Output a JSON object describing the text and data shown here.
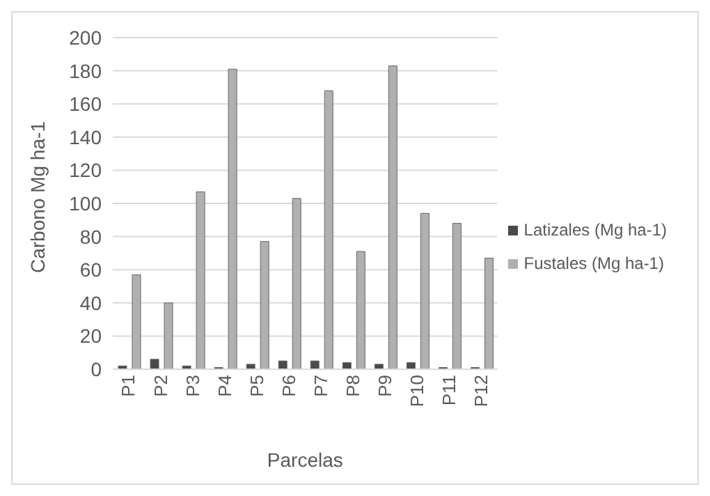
{
  "chart_data": {
    "type": "bar",
    "xlabel": "Parcelas",
    "ylabel": "Carbono Mg ha-1",
    "categories": [
      "P1",
      "P2",
      "P3",
      "P4",
      "P5",
      "P6",
      "P7",
      "P8",
      "P9",
      "P10",
      "P11",
      "P12"
    ],
    "series": [
      {
        "name": "Latizales (Mg ha-1)",
        "color": "#4a4a4a",
        "values": [
          2,
          6,
          2,
          1,
          3,
          5,
          5,
          4,
          3,
          4,
          1,
          1
        ]
      },
      {
        "name": "Fustales (Mg ha-1)",
        "color": "#b0b0b0",
        "values": [
          57,
          40,
          107,
          181,
          77,
          103,
          168,
          71,
          183,
          94,
          88,
          67
        ]
      }
    ],
    "ylim": [
      0,
      200
    ],
    "yticks": [
      0,
      20,
      40,
      60,
      80,
      100,
      120,
      140,
      160,
      180,
      200
    ],
    "grid": "y",
    "legend": "right"
  }
}
